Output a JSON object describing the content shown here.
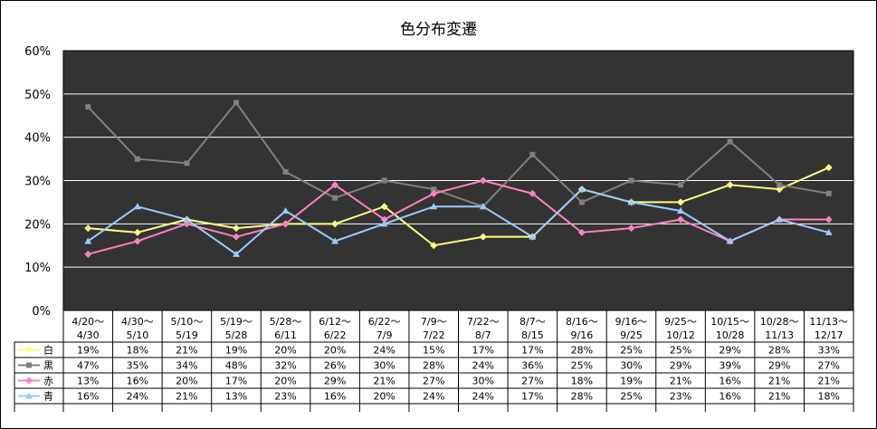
{
  "chart_data": {
    "type": "line",
    "title": "色分布変遷",
    "xlabel": "",
    "ylabel": "",
    "ylim": [
      0,
      60
    ],
    "yticks": [
      "0%",
      "10%",
      "20%",
      "30%",
      "40%",
      "50%",
      "60%"
    ],
    "grid": true,
    "plot_background": "#333333",
    "legend": "data-table-left",
    "categories": [
      [
        "4/20～",
        "4/30"
      ],
      [
        "4/30～",
        "5/10"
      ],
      [
        "5/10～",
        "5/19"
      ],
      [
        "5/19～",
        "5/28"
      ],
      [
        "5/28～",
        "6/11"
      ],
      [
        "6/12～",
        "6/22"
      ],
      [
        "6/22～",
        "7/9"
      ],
      [
        "7/9～",
        "7/22"
      ],
      [
        "7/22～",
        "8/7"
      ],
      [
        "8/7～",
        "8/15"
      ],
      [
        "8/16～",
        "9/16"
      ],
      [
        "9/16～",
        "9/25"
      ],
      [
        "9/25～",
        "10/12"
      ],
      [
        "10/15～",
        "10/28"
      ],
      [
        "10/28～",
        "11/13"
      ],
      [
        "11/13～",
        "12/17"
      ]
    ],
    "series": [
      {
        "name": "白",
        "color": "#ffff80",
        "marker": "diamond",
        "values": [
          19,
          18,
          21,
          19,
          20,
          20,
          24,
          15,
          17,
          17,
          28,
          25,
          25,
          29,
          28,
          33
        ]
      },
      {
        "name": "黒",
        "color": "#808080",
        "marker": "square",
        "values": [
          47,
          35,
          34,
          48,
          32,
          26,
          30,
          28,
          24,
          36,
          25,
          30,
          29,
          39,
          29,
          27
        ]
      },
      {
        "name": "赤",
        "color": "#ff80c0",
        "marker": "diamond",
        "values": [
          13,
          16,
          20,
          17,
          20,
          29,
          21,
          27,
          30,
          27,
          18,
          19,
          21,
          16,
          21,
          21
        ]
      },
      {
        "name": "青",
        "color": "#99ccff",
        "marker": "triangle",
        "values": [
          16,
          24,
          21,
          13,
          23,
          16,
          20,
          24,
          24,
          17,
          28,
          25,
          23,
          16,
          21,
          18
        ]
      }
    ],
    "value_suffix": "%"
  }
}
